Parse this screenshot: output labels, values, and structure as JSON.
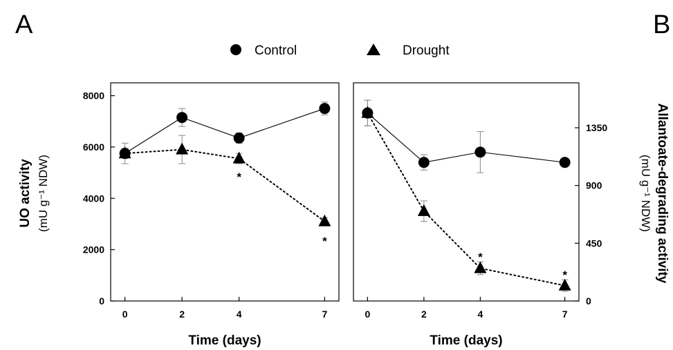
{
  "panel_a_letter": "A",
  "panel_b_letter": "B",
  "legend": [
    {
      "label": "Control",
      "marker": "circle"
    },
    {
      "label": "Drought",
      "marker": "triangle"
    }
  ],
  "chart_data": [
    {
      "type": "line",
      "panel": "A",
      "xlabel": "Time (days)",
      "ylabel": "UO activity",
      "ylabel_units": "(mU g⁻¹ NDW)",
      "x": [
        0,
        2,
        4,
        7
      ],
      "x_tick_labels": [
        "0",
        "2",
        "4",
        "7"
      ],
      "xlim": [
        -0.5,
        7.5
      ],
      "ylim": [
        0,
        8500
      ],
      "y_ticks": [
        0,
        2000,
        4000,
        6000,
        8000
      ],
      "y_tick_labels": [
        "0",
        "2000",
        "4000",
        "6000",
        "8000"
      ],
      "y_axis_side": "left",
      "series": [
        {
          "name": "Control",
          "marker": "circle",
          "line": "solid",
          "values": [
            5750,
            7150,
            6350,
            7500
          ],
          "errors": [
            400,
            350,
            200,
            250
          ]
        },
        {
          "name": "Drought",
          "marker": "triangle",
          "line": "dotted",
          "values": [
            5750,
            5900,
            5550,
            3100
          ],
          "errors": [
            200,
            550,
            200,
            150
          ]
        }
      ],
      "significance": [
        {
          "x": 4,
          "label": "*",
          "y": 4900
        },
        {
          "x": 7,
          "label": "*",
          "y": 2400
        }
      ]
    },
    {
      "type": "line",
      "panel": "B",
      "xlabel": "Time (days)",
      "ylabel": "Allantoate-degrading activity",
      "ylabel_units": "(mU g⁻¹ NDW)",
      "x": [
        0,
        2,
        4,
        7
      ],
      "x_tick_labels": [
        "0",
        "2",
        "4",
        "7"
      ],
      "xlim": [
        -0.5,
        7.5
      ],
      "ylim": [
        0,
        1700
      ],
      "y_ticks": [
        0,
        450,
        900,
        1350
      ],
      "y_tick_labels": [
        "0",
        "450",
        "900",
        "1350"
      ],
      "y_axis_side": "right",
      "series": [
        {
          "name": "Control",
          "marker": "circle",
          "line": "solid",
          "values": [
            1465,
            1080,
            1160,
            1080
          ],
          "errors": [
            100,
            60,
            160,
            20
          ]
        },
        {
          "name": "Drought",
          "marker": "triangle",
          "line": "dotted",
          "values": [
            1465,
            700,
            255,
            120
          ],
          "errors": [
            100,
            80,
            50,
            45
          ]
        }
      ],
      "significance": [
        {
          "x": 4,
          "label": "*",
          "y": 355
        },
        {
          "x": 7,
          "label": "*",
          "y": 215
        }
      ]
    }
  ]
}
